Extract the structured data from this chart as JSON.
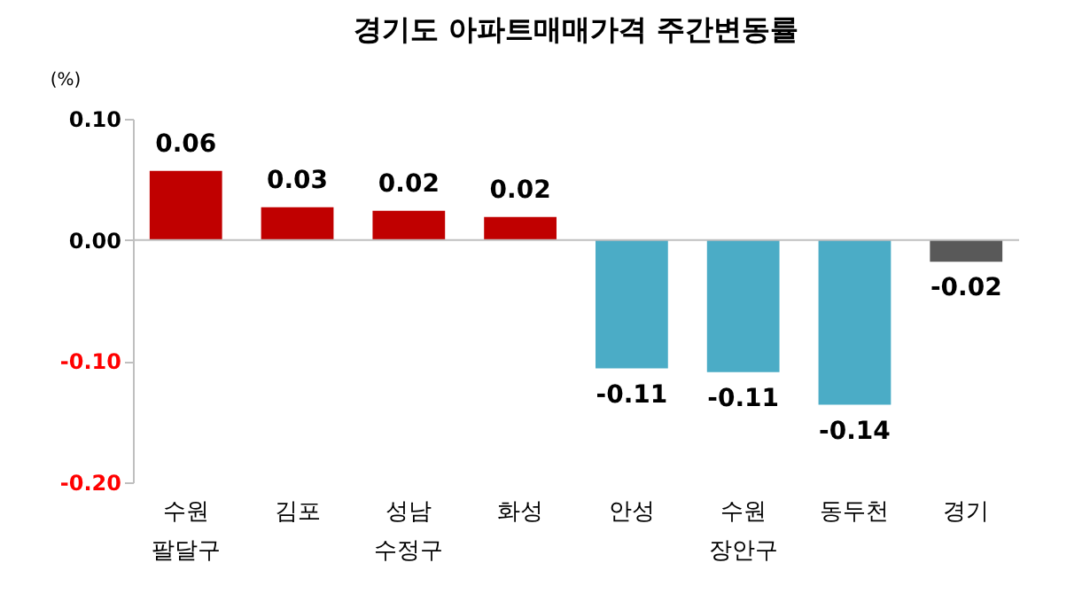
{
  "chart_data": {
    "type": "bar",
    "title": "경기도 아파트매매가격 주간변동률",
    "ylabel": "(%)",
    "categories": [
      "수원\n팔달구",
      "김포",
      "성남\n수정구",
      "화성",
      "안성",
      "수원\n장안구",
      "동두천",
      "경기"
    ],
    "values": [
      0.057,
      0.027,
      0.024,
      0.019,
      -0.106,
      -0.109,
      -0.136,
      -0.018
    ],
    "value_labels": [
      "0.06",
      "0.03",
      "0.02",
      "0.02",
      "-0.11",
      "-0.11",
      "-0.14",
      "-0.02"
    ],
    "colors": [
      "#c00000",
      "#c00000",
      "#c00000",
      "#c00000",
      "#4bacc6",
      "#4bacc6",
      "#4bacc6",
      "#595959"
    ],
    "ylim": [
      -0.2,
      0.1
    ],
    "yticks": [
      {
        "value": 0.1,
        "label": "0.10"
      },
      {
        "value": 0,
        "label": "0.00"
      },
      {
        "value": -0.1,
        "label": "-0.10"
      },
      {
        "value": -0.2,
        "label": "-0.20"
      }
    ],
    "ref_lines": [
      {
        "axis": "y",
        "value": 0,
        "color": "#bfbfbf"
      }
    ],
    "grid": false
  }
}
